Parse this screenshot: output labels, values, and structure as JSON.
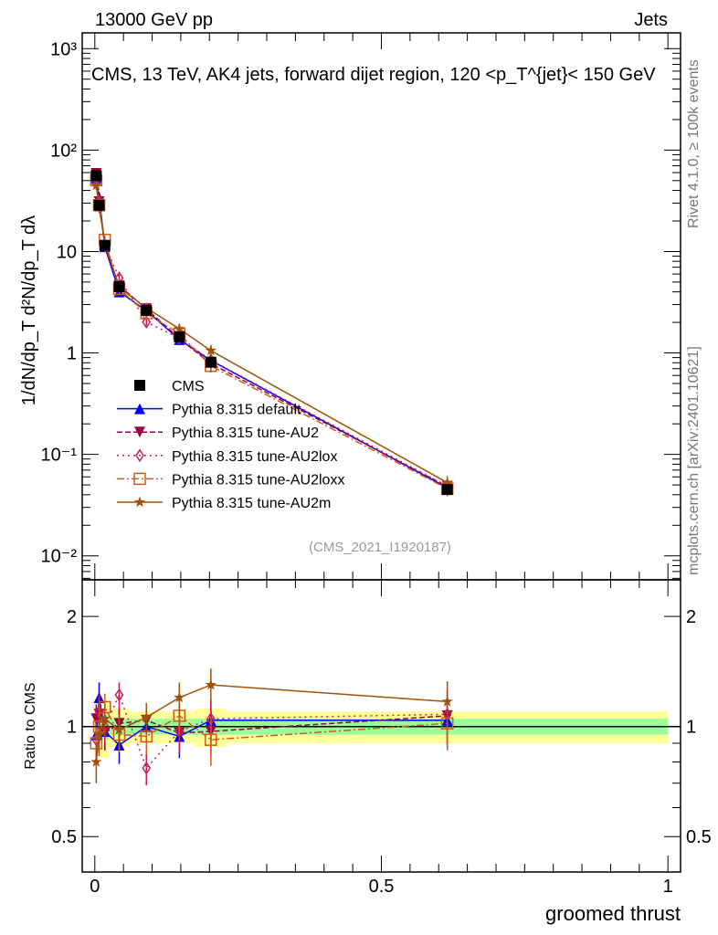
{
  "header": {
    "left": "13000 GeV pp",
    "right": "Jets"
  },
  "side_labels": {
    "top": "Rivet 4.1.0, ≥ 100k events",
    "bottom": "mcplots.cern.ch [arXiv:2401.10621]"
  },
  "analysis_id": "(CMS_2021_I1920187)",
  "chart_data": [
    {
      "type": "line",
      "panel": "main",
      "title": "CMS, 13 TeV, AK4 jets, forward dijet region, 120 <p_T^{jet}< 150 GeV",
      "ylabel": "1/dN/dp_T  d²N/dp_T dλ",
      "yscale": "log",
      "ylim": [
        0.0058,
        1430
      ],
      "xlim": [
        -0.022,
        1.022
      ],
      "yticks": [
        {
          "v": 1000,
          "l": "10³"
        },
        {
          "v": 100,
          "l": "10²"
        },
        {
          "v": 10,
          "l": "10"
        },
        {
          "v": 1,
          "l": "1"
        },
        {
          "v": 0.1,
          "l": "10⁻¹"
        },
        {
          "v": 0.01,
          "l": "10⁻²"
        }
      ],
      "legend_position": "lower-left",
      "x": [
        0.0025,
        0.0075,
        0.0175,
        0.0425,
        0.09,
        0.1475,
        0.2025,
        0.615
      ],
      "bin_edges": [
        0,
        0.005,
        0.01,
        0.025,
        0.06,
        0.12,
        0.175,
        0.23,
        1.0
      ],
      "cms": [
        56,
        28.6,
        11.5,
        4.5,
        2.62,
        1.44,
        0.81,
        0.045
      ],
      "cms_rel_err": [
        0.05,
        0.05,
        0.08,
        0.06,
        0.06,
        0.06,
        0.08,
        0.1
      ]
    },
    {
      "type": "line",
      "panel": "ratio",
      "ylabel": "Ratio to CMS",
      "xlabel": "groomed thrust",
      "yscale": "log",
      "ylim": [
        0.4,
        2.52
      ],
      "yticks": [
        {
          "v": 2,
          "l": "2"
        },
        {
          "v": 1,
          "l": "1"
        },
        {
          "v": 0.5,
          "l": "0.5"
        }
      ],
      "xticks": [
        {
          "v": 0,
          "l": "0"
        },
        {
          "v": 0.5,
          "l": "0.5"
        },
        {
          "v": 1,
          "l": "1"
        }
      ],
      "band_stat": [
        0.05,
        0.06,
        0.08,
        0.05,
        0.05,
        0.05,
        0.05,
        0.05
      ],
      "band_total": [
        0.1,
        0.1,
        0.18,
        0.12,
        0.1,
        0.1,
        0.12,
        0.1
      ],
      "series": [
        {
          "name": "CMS",
          "color": "#000000",
          "marker": "square",
          "dash": ""
        },
        {
          "name": "Pythia 8.315 default",
          "color": "#0000ff",
          "marker": "triangle-up",
          "dash": "",
          "ratio": [
            0.95,
            1.2,
            0.97,
            0.89,
            1.0,
            0.94,
            1.04,
            1.04
          ],
          "err": [
            0.1,
            0.12,
            0.1,
            0.1,
            0.1,
            0.12,
            0.14,
            0.16
          ]
        },
        {
          "name": "Pythia 8.315 tune-AU2",
          "color": "#9b0047",
          "marker": "triangle-down",
          "dash": "6,3",
          "ratio": [
            1.05,
            1.08,
            0.96,
            1.02,
            1.04,
            0.96,
            0.97,
            1.07
          ],
          "err": [
            0.1,
            0.12,
            0.1,
            0.1,
            0.1,
            0.12,
            0.14,
            0.18
          ]
        },
        {
          "name": "Pythia 8.315 tune-AU2lox",
          "color": "#c81e5a",
          "marker": "diamond",
          "dash": "2,4",
          "ratio": [
            0.92,
            1.1,
            1.0,
            1.22,
            0.77,
            0.97,
            1.05,
            1.08
          ],
          "err": [
            0.1,
            0.12,
            0.1,
            0.1,
            0.08,
            0.12,
            0.14,
            0.18
          ]
        },
        {
          "name": "Pythia 8.315 tune-AU2loxx",
          "color": "#d05a1e",
          "marker": "square-open",
          "dash": "8,3,2,3",
          "ratio": [
            0.9,
            1.0,
            1.13,
            0.95,
            0.94,
            1.07,
            0.92,
            1.02
          ],
          "err": [
            0.1,
            0.12,
            0.1,
            0.1,
            0.1,
            0.12,
            0.14,
            0.16
          ]
        },
        {
          "name": "Pythia 8.315 tune-AU2m",
          "color": "#a0520a",
          "marker": "star",
          "dash": "",
          "ratio": [
            0.8,
            0.95,
            1.05,
            0.98,
            1.06,
            1.2,
            1.3,
            1.17
          ],
          "err": [
            0.1,
            0.12,
            0.1,
            0.1,
            0.1,
            0.12,
            0.14,
            0.16
          ]
        }
      ]
    }
  ]
}
